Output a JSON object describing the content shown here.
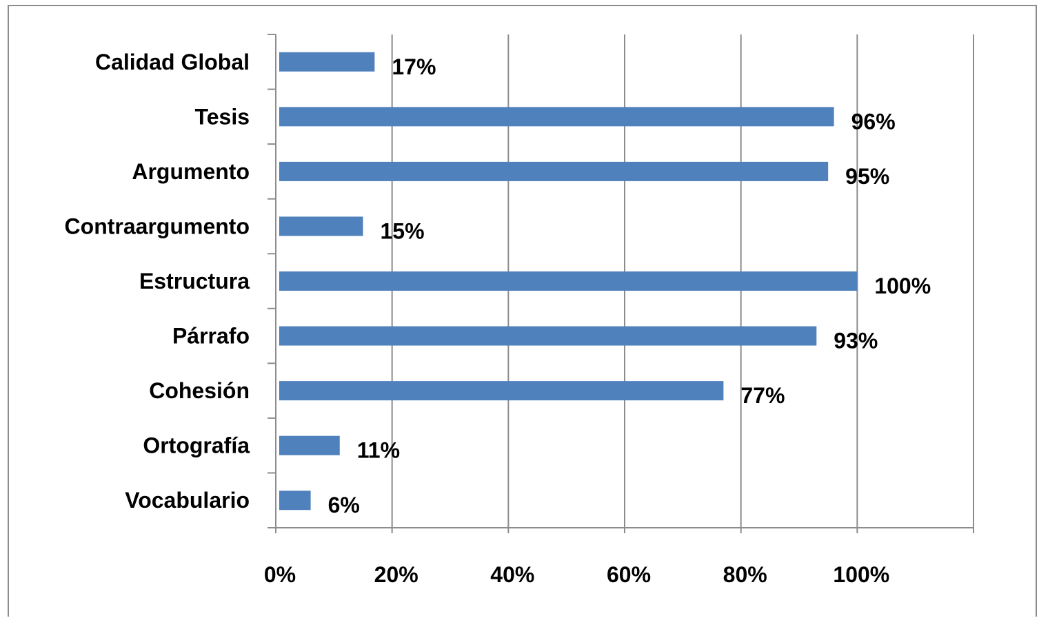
{
  "chart_data": {
    "type": "bar",
    "orientation": "horizontal",
    "categories": [
      "Calidad Global",
      "Tesis",
      "Argumento",
      "Contraargumento",
      "Estructura",
      "Párrafo",
      "Cohesión",
      "Ortografía",
      "Vocabulario"
    ],
    "values": [
      17,
      96,
      95,
      15,
      100,
      93,
      77,
      11,
      6
    ],
    "data_labels": [
      "17%",
      "96%",
      "95%",
      "15%",
      "100%",
      "93%",
      "77%",
      "11%",
      "6%"
    ],
    "x_ticks": [
      "0%",
      "20%",
      "40%",
      "60%",
      "80%",
      "100%"
    ],
    "x_tick_values": [
      0,
      20,
      40,
      60,
      80,
      100
    ],
    "xlim": [
      0,
      120
    ],
    "title": "",
    "xlabel": "",
    "ylabel": "",
    "grid": "vertical",
    "legend": "none",
    "colors": {
      "bar": "#4f81bd",
      "grid": "#8c8c8c",
      "axis": "#8c8c8c",
      "text": "#000000"
    }
  }
}
